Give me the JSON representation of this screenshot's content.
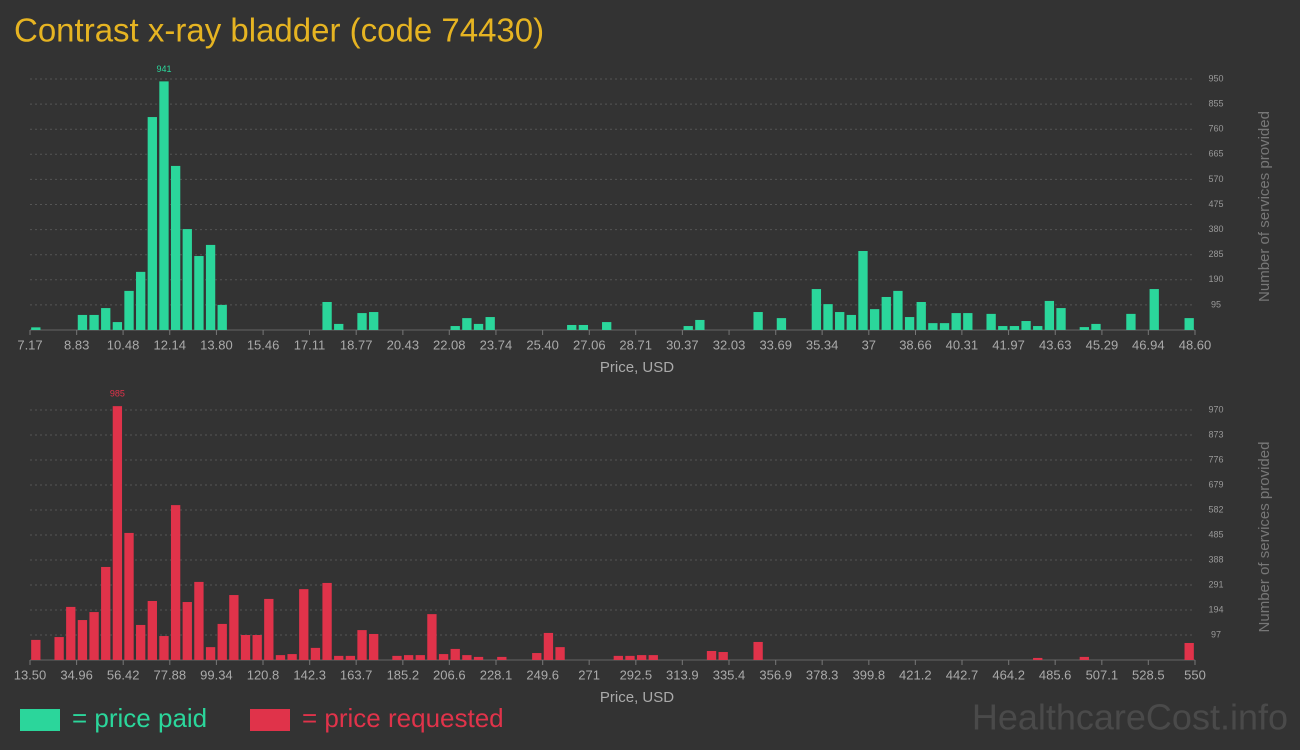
{
  "title": "Contrast x-ray bladder (code 74430)",
  "watermark": "HealthcareCost.info",
  "chart_data": [
    {
      "type": "histogram",
      "x_label": "Price, USD",
      "y_label": "Number of services provided",
      "bins": [
        7.17,
        7.584,
        7.999,
        8.413,
        8.827,
        9.242,
        9.656,
        10.07,
        10.484,
        10.899,
        11.313,
        11.727,
        12.142,
        12.556,
        12.97,
        13.385,
        13.799,
        14.213,
        14.627,
        15.042,
        15.456,
        15.87,
        16.285,
        16.699,
        17.113,
        17.528,
        17.942,
        18.356,
        18.77,
        19.185,
        19.599,
        20.013,
        20.428,
        20.842,
        21.256,
        21.671,
        22.085,
        22.499,
        22.913,
        23.328,
        23.742,
        24.156,
        24.571,
        24.985,
        25.399,
        25.814,
        26.228,
        26.642,
        27.056,
        27.471,
        27.885,
        28.299,
        28.714,
        29.128,
        29.542,
        29.957,
        30.371,
        30.785,
        31.199,
        31.614,
        32.028,
        32.442,
        32.857,
        33.271,
        33.685,
        34.1,
        34.514,
        34.928,
        35.342,
        35.757,
        36.171,
        36.585,
        37.0,
        37.414,
        37.828,
        38.243,
        38.657,
        39.071,
        39.485,
        39.9,
        40.314,
        40.728,
        41.143,
        41.557,
        41.971,
        42.386,
        42.8,
        43.214,
        43.628,
        44.043,
        44.457,
        44.871,
        45.286,
        45.7,
        46.114,
        46.529,
        46.943,
        47.357,
        47.771,
        48.186,
        48.6
      ],
      "series": [
        {
          "name": "= price paid",
          "color": "#2bd69b",
          "values": [
            10,
            0,
            0,
            0,
            57,
            57,
            83,
            30,
            148,
            220,
            806,
            941,
            621,
            382,
            280,
            322,
            95,
            0,
            0,
            0,
            0,
            0,
            0,
            0,
            0,
            106,
            23,
            0,
            64,
            68,
            0,
            0,
            0,
            0,
            0,
            0,
            15,
            45,
            23,
            49,
            0,
            0,
            0,
            0,
            0,
            0,
            19,
            19,
            0,
            30,
            0,
            0,
            0,
            0,
            0,
            0,
            15,
            38,
            0,
            0,
            0,
            0,
            68,
            0,
            45,
            0,
            0,
            155,
            98,
            68,
            57,
            299,
            79,
            125,
            148,
            49,
            106,
            26,
            26,
            64,
            64,
            0,
            61,
            15,
            15,
            34,
            15,
            110,
            83,
            0,
            11,
            23,
            0,
            0,
            61,
            0,
            155,
            0,
            0,
            45
          ]
        }
      ],
      "label_max": true,
      "xlim": [
        7.17,
        48.6
      ],
      "xticks": [
        7.17,
        8.83,
        10.48,
        12.14,
        {
          "value": 13.8,
          "label": "13.80"
        },
        15.46,
        17.11,
        18.77,
        20.43,
        22.08,
        23.74,
        {
          "value": 25.4,
          "label": "25.40"
        },
        27.06,
        28.71,
        30.37,
        32.03,
        33.69,
        35.34,
        37,
        38.66,
        40.31,
        41.97,
        43.63,
        45.29,
        46.94,
        {
          "value": 48.6,
          "label": "48.60"
        }
      ],
      "ylim": [
        0,
        950
      ],
      "yticks": [
        95,
        190,
        285,
        380,
        475,
        570,
        665,
        760,
        855,
        950
      ],
      "grid": true
    },
    {
      "type": "histogram",
      "x_label": "Price, USD",
      "y_label": "Number of services provided",
      "bins": [
        13.5,
        18.865,
        24.23,
        29.595,
        34.96,
        40.325,
        45.69,
        51.055,
        56.42,
        61.785,
        67.15,
        72.515,
        77.88,
        83.245,
        88.61,
        93.975,
        99.34,
        104.705,
        110.07,
        115.435,
        120.8,
        126.165,
        131.53,
        136.895,
        142.26,
        147.625,
        152.99,
        158.355,
        163.72,
        169.085,
        174.45,
        179.815,
        185.18,
        190.545,
        195.91,
        201.275,
        206.64,
        212.005,
        217.37,
        222.735,
        228.1,
        233.465,
        238.83,
        244.195,
        249.56,
        254.925,
        260.29,
        265.655,
        271.02,
        276.385,
        281.75,
        287.115,
        292.48,
        297.845,
        303.21,
        308.575,
        313.94,
        319.305,
        324.67,
        330.035,
        335.4,
        340.765,
        346.13,
        351.495,
        356.86,
        362.225,
        367.59,
        372.955,
        378.32,
        383.685,
        389.05,
        394.415,
        399.78,
        405.145,
        410.51,
        415.875,
        421.24,
        426.605,
        431.97,
        437.335,
        442.7,
        448.065,
        453.43,
        458.795,
        464.16,
        469.525,
        474.89,
        480.255,
        485.62,
        490.985,
        496.35,
        501.715,
        507.08,
        512.445,
        517.81,
        523.175,
        528.54,
        533.905,
        539.27,
        544.635,
        550
      ],
      "series": [
        {
          "name": "= price requested",
          "color": "#e0334a",
          "values": [
            78,
            0,
            89,
            206,
            155,
            186,
            361,
            985,
            493,
            136,
            229,
            93,
            601,
            225,
            303,
            50,
            140,
            252,
            97,
            97,
            237,
            19,
            23,
            275,
            47,
            299,
            16,
            16,
            116,
            101,
            0,
            16,
            19,
            19,
            178,
            23,
            43,
            19,
            12,
            0,
            12,
            0,
            0,
            27,
            105,
            50,
            0,
            0,
            0,
            0,
            16,
            16,
            19,
            19,
            0,
            0,
            0,
            0,
            35,
            31,
            0,
            0,
            70,
            0,
            0,
            0,
            0,
            0,
            0,
            0,
            0,
            0,
            0,
            0,
            0,
            0,
            0,
            0,
            0,
            0,
            0,
            0,
            0,
            0,
            0,
            0,
            8,
            0,
            0,
            0,
            12,
            0,
            0,
            0,
            0,
            0,
            0,
            0,
            0,
            66
          ]
        }
      ],
      "label_max": true,
      "xlim": [
        13.5,
        550
      ],
      "xticks": [
        {
          "value": 13.5,
          "label": "13.50"
        },
        34.96,
        56.42,
        77.88,
        99.34,
        120.8,
        142.3,
        163.7,
        185.2,
        206.6,
        228.1,
        249.6,
        271,
        292.5,
        313.9,
        335.4,
        356.9,
        378.3,
        399.8,
        421.2,
        442.7,
        464.2,
        485.6,
        507.1,
        528.5,
        550
      ],
      "ylim": [
        0,
        970
      ],
      "yticks": [
        97,
        194,
        291,
        388,
        485,
        582,
        679,
        776,
        873,
        970
      ],
      "grid": true
    }
  ]
}
